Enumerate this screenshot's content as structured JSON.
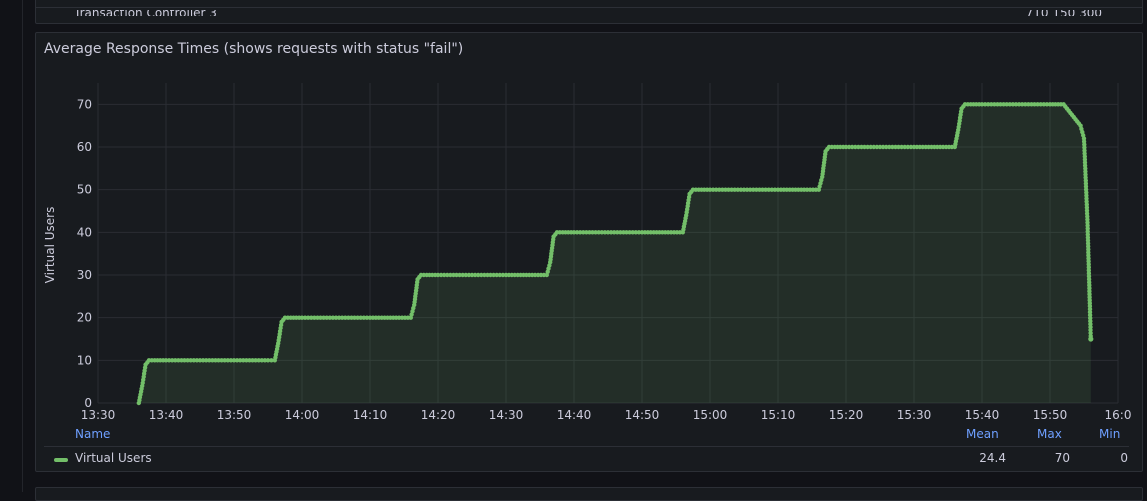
{
  "top_panel": {
    "cut_row_label": "Transaction Controller 3",
    "cut_row_values": "710    150    300"
  },
  "panel": {
    "title": "Average Response Times (shows requests with status \"fail\")",
    "series_color": "#73bf69"
  },
  "chart_data": {
    "type": "area",
    "title": "Average Response Times (shows requests with status \"fail\")",
    "ylabel": "Virtual Users",
    "xlabel": "",
    "x_ticks": [
      "13:30",
      "13:40",
      "13:50",
      "14:00",
      "14:10",
      "14:20",
      "14:30",
      "14:40",
      "14:50",
      "15:00",
      "15:10",
      "15:20",
      "15:30",
      "15:40",
      "15:50",
      "16:0"
    ],
    "y_ticks": [
      "0",
      "10",
      "20",
      "30",
      "40",
      "50",
      "60",
      "70"
    ],
    "ylim": [
      0,
      75
    ],
    "xlim": [
      "13:30",
      "16:00"
    ],
    "grid": true,
    "series": [
      {
        "name": "Virtual Users",
        "color": "#73bf69",
        "points": [
          [
            "13:36:00",
            0
          ],
          [
            "13:36:30",
            4
          ],
          [
            "13:37:00",
            9
          ],
          [
            "13:37:30",
            10
          ],
          [
            "13:40:00",
            10
          ],
          [
            "13:45:00",
            10
          ],
          [
            "13:50:00",
            10
          ],
          [
            "13:55:00",
            10
          ],
          [
            "13:56:00",
            10
          ],
          [
            "13:56:30",
            14
          ],
          [
            "13:57:00",
            19
          ],
          [
            "13:57:30",
            20
          ],
          [
            "14:00:00",
            20
          ],
          [
            "14:05:00",
            20
          ],
          [
            "14:10:00",
            20
          ],
          [
            "14:16:00",
            20
          ],
          [
            "14:16:30",
            23
          ],
          [
            "14:17:00",
            29
          ],
          [
            "14:17:30",
            30
          ],
          [
            "14:20:00",
            30
          ],
          [
            "14:25:00",
            30
          ],
          [
            "14:30:00",
            30
          ],
          [
            "14:36:00",
            30
          ],
          [
            "14:36:30",
            33
          ],
          [
            "14:37:00",
            39
          ],
          [
            "14:37:30",
            40
          ],
          [
            "14:40:00",
            40
          ],
          [
            "14:45:00",
            40
          ],
          [
            "14:50:00",
            40
          ],
          [
            "14:56:00",
            40
          ],
          [
            "14:56:30",
            44
          ],
          [
            "14:57:00",
            49
          ],
          [
            "14:57:30",
            50
          ],
          [
            "15:00:00",
            50
          ],
          [
            "15:05:00",
            50
          ],
          [
            "15:10:00",
            50
          ],
          [
            "15:16:00",
            50
          ],
          [
            "15:16:30",
            53
          ],
          [
            "15:17:00",
            59
          ],
          [
            "15:17:30",
            60
          ],
          [
            "15:20:00",
            60
          ],
          [
            "15:25:00",
            60
          ],
          [
            "15:30:00",
            60
          ],
          [
            "15:36:00",
            60
          ],
          [
            "15:36:30",
            64
          ],
          [
            "15:37:00",
            69
          ],
          [
            "15:37:30",
            70
          ],
          [
            "15:40:00",
            70
          ],
          [
            "15:45:00",
            70
          ],
          [
            "15:50:00",
            70
          ],
          [
            "15:52:00",
            70
          ],
          [
            "15:52:30",
            69
          ],
          [
            "15:53:00",
            68
          ],
          [
            "15:53:30",
            67
          ],
          [
            "15:54:00",
            66
          ],
          [
            "15:54:30",
            65
          ],
          [
            "15:55:00",
            62
          ],
          [
            "15:55:30",
            43
          ],
          [
            "15:56:00",
            15
          ]
        ]
      }
    ],
    "legend": {
      "placement": "bottom",
      "columns": [
        "Name",
        "Mean",
        "Max",
        "Min"
      ],
      "rows": [
        {
          "name": "Virtual Users",
          "mean": "24.4",
          "max": "70",
          "min": "0"
        }
      ]
    }
  }
}
